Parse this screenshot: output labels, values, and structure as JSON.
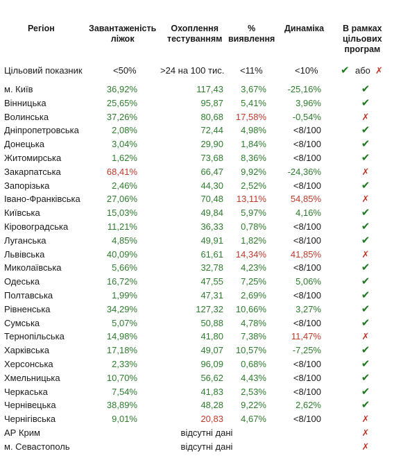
{
  "headers": {
    "region": "Регіон",
    "load": [
      "Завантаженість",
      "ліжок"
    ],
    "testing": [
      "Охоплення",
      "тестуванням"
    ],
    "detection": [
      "%",
      "виявлення"
    ],
    "dynamics": "Динаміка",
    "programs": [
      "В рамках",
      "цільових",
      "програм"
    ]
  },
  "target": {
    "label": "Цільовий показник",
    "load": "<50%",
    "testing": ">24 на 100 тис.",
    "detection": "<11%",
    "dynamics": "<10%",
    "or_word": "або"
  },
  "no_data_text": "відсутні дані",
  "colors": {
    "green": "#2e7d2e",
    "red": "#c0392b",
    "check": "#1f7a1f"
  },
  "rows": [
    {
      "region": "м. Київ",
      "load": "36,92%",
      "load_c": "green",
      "test": "117,43",
      "test_c": "green",
      "det": "3,67%",
      "det_c": "green",
      "dyn": "-25,16%",
      "dyn_c": "green",
      "prog": "check"
    },
    {
      "region": "Вінницька",
      "load": "25,65%",
      "load_c": "green",
      "test": "95,87",
      "test_c": "green",
      "det": "5,41%",
      "det_c": "green",
      "dyn": "3,96%",
      "dyn_c": "green",
      "prog": "check"
    },
    {
      "region": "Волинська",
      "load": "37,26%",
      "load_c": "green",
      "test": "80,68",
      "test_c": "green",
      "det": "17,58%",
      "det_c": "red",
      "dyn": "-0,54%",
      "dyn_c": "green",
      "prog": "cross"
    },
    {
      "region": "Дніпропетровська",
      "load": "2,08%",
      "load_c": "green",
      "test": "72,44",
      "test_c": "green",
      "det": "4,98%",
      "det_c": "green",
      "dyn": "<8/100",
      "dyn_c": "dark",
      "prog": "check"
    },
    {
      "region": "Донецька",
      "load": "3,04%",
      "load_c": "green",
      "test": "29,90",
      "test_c": "green",
      "det": "1,84%",
      "det_c": "green",
      "dyn": "<8/100",
      "dyn_c": "dark",
      "prog": "check"
    },
    {
      "region": "Житомирська",
      "load": "1,62%",
      "load_c": "green",
      "test": "73,68",
      "test_c": "green",
      "det": "8,36%",
      "det_c": "green",
      "dyn": "<8/100",
      "dyn_c": "dark",
      "prog": "check"
    },
    {
      "region": "Закарпатська",
      "load": "68,41%",
      "load_c": "red",
      "test": "66,47",
      "test_c": "green",
      "det": "9,92%",
      "det_c": "green",
      "dyn": "-24,36%",
      "dyn_c": "green",
      "prog": "cross"
    },
    {
      "region": "Запорізька",
      "load": "2,46%",
      "load_c": "green",
      "test": "44,30",
      "test_c": "green",
      "det": "2,52%",
      "det_c": "green",
      "dyn": "<8/100",
      "dyn_c": "dark",
      "prog": "check"
    },
    {
      "region": "Івано-Франківська",
      "load": "27,06%",
      "load_c": "green",
      "test": "70,48",
      "test_c": "green",
      "det": "13,11%",
      "det_c": "red",
      "dyn": "54,85%",
      "dyn_c": "red",
      "prog": "cross"
    },
    {
      "region": "Київська",
      "load": "15,03%",
      "load_c": "green",
      "test": "49,84",
      "test_c": "green",
      "det": "5,97%",
      "det_c": "green",
      "dyn": "4,16%",
      "dyn_c": "green",
      "prog": "check"
    },
    {
      "region": "Кіровоградська",
      "load": "11,21%",
      "load_c": "green",
      "test": "36,33",
      "test_c": "green",
      "det": "0,78%",
      "det_c": "green",
      "dyn": "<8/100",
      "dyn_c": "dark",
      "prog": "check"
    },
    {
      "region": "Луганська",
      "load": "4,85%",
      "load_c": "green",
      "test": "49,91",
      "test_c": "green",
      "det": "1,82%",
      "det_c": "green",
      "dyn": "<8/100",
      "dyn_c": "dark",
      "prog": "check"
    },
    {
      "region": "Львівська",
      "load": "40,09%",
      "load_c": "green",
      "test": "61,61",
      "test_c": "green",
      "det": "14,34%",
      "det_c": "red",
      "dyn": "41,85%",
      "dyn_c": "red",
      "prog": "cross"
    },
    {
      "region": "Миколаївська",
      "load": "5,66%",
      "load_c": "green",
      "test": "32,78",
      "test_c": "green",
      "det": "4,23%",
      "det_c": "green",
      "dyn": "<8/100",
      "dyn_c": "dark",
      "prog": "check"
    },
    {
      "region": "Одеська",
      "load": "16,72%",
      "load_c": "green",
      "test": "47,55",
      "test_c": "green",
      "det": "7,25%",
      "det_c": "green",
      "dyn": "5,06%",
      "dyn_c": "green",
      "prog": "check"
    },
    {
      "region": "Полтавська",
      "load": "1,99%",
      "load_c": "green",
      "test": "47,31",
      "test_c": "green",
      "det": "2,69%",
      "det_c": "green",
      "dyn": "<8/100",
      "dyn_c": "dark",
      "prog": "check"
    },
    {
      "region": "Рівненська",
      "load": "34,29%",
      "load_c": "green",
      "test": "127,32",
      "test_c": "green",
      "det": "10,66%",
      "det_c": "green",
      "dyn": "3,27%",
      "dyn_c": "green",
      "prog": "check"
    },
    {
      "region": "Сумська",
      "load": "5,07%",
      "load_c": "green",
      "test": "50,88",
      "test_c": "green",
      "det": "4,78%",
      "det_c": "green",
      "dyn": "<8/100",
      "dyn_c": "dark",
      "prog": "check"
    },
    {
      "region": "Тернопільська",
      "load": "14,98%",
      "load_c": "green",
      "test": "41,80",
      "test_c": "green",
      "det": "7,38%",
      "det_c": "green",
      "dyn": "11,47%",
      "dyn_c": "red",
      "prog": "cross"
    },
    {
      "region": "Харківська",
      "load": "17,18%",
      "load_c": "green",
      "test": "49,07",
      "test_c": "green",
      "det": "10,57%",
      "det_c": "green",
      "dyn": "-7,25%",
      "dyn_c": "green",
      "prog": "check"
    },
    {
      "region": "Херсонська",
      "load": "2,33%",
      "load_c": "green",
      "test": "96,09",
      "test_c": "green",
      "det": "0,68%",
      "det_c": "green",
      "dyn": "<8/100",
      "dyn_c": "dark",
      "prog": "check"
    },
    {
      "region": "Хмельницька",
      "load": "10,70%",
      "load_c": "green",
      "test": "56,62",
      "test_c": "green",
      "det": "4,43%",
      "det_c": "green",
      "dyn": "<8/100",
      "dyn_c": "dark",
      "prog": "check"
    },
    {
      "region": "Черкаська",
      "load": "7,54%",
      "load_c": "green",
      "test": "41,83",
      "test_c": "green",
      "det": "2,53%",
      "det_c": "green",
      "dyn": "<8/100",
      "dyn_c": "dark",
      "prog": "check"
    },
    {
      "region": "Чернівецька",
      "load": "38,89%",
      "load_c": "green",
      "test": "48,28",
      "test_c": "green",
      "det": "9,22%",
      "det_c": "green",
      "dyn": "2,62%",
      "dyn_c": "green",
      "prog": "check"
    },
    {
      "region": "Чернігівська",
      "load": "9,01%",
      "load_c": "green",
      "test": "20,83",
      "test_c": "red",
      "det": "4,67%",
      "det_c": "green",
      "dyn": "<8/100",
      "dyn_c": "dark",
      "prog": "cross"
    },
    {
      "region": "АР Крим",
      "nodata": true,
      "prog": "cross"
    },
    {
      "region": "м. Севастополь",
      "nodata": true,
      "prog": "cross"
    }
  ]
}
